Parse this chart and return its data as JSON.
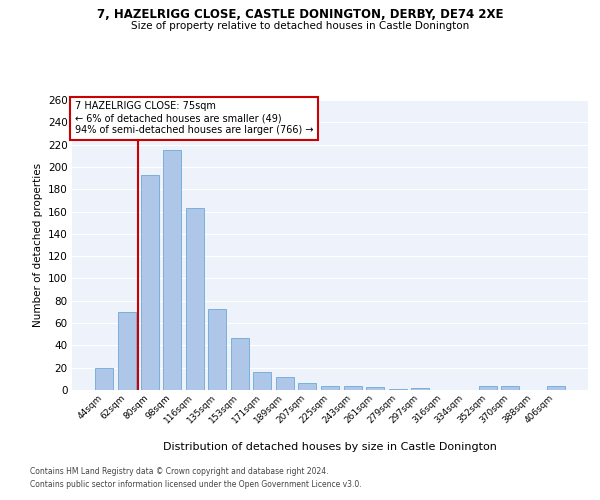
{
  "title1": "7, HAZELRIGG CLOSE, CASTLE DONINGTON, DERBY, DE74 2XE",
  "title2": "Size of property relative to detached houses in Castle Donington",
  "xlabel": "Distribution of detached houses by size in Castle Donington",
  "ylabel": "Number of detached properties",
  "categories": [
    "44sqm",
    "62sqm",
    "80sqm",
    "98sqm",
    "116sqm",
    "135sqm",
    "153sqm",
    "171sqm",
    "189sqm",
    "207sqm",
    "225sqm",
    "243sqm",
    "261sqm",
    "279sqm",
    "297sqm",
    "316sqm",
    "334sqm",
    "352sqm",
    "370sqm",
    "388sqm",
    "406sqm"
  ],
  "values": [
    20,
    70,
    193,
    215,
    163,
    73,
    47,
    16,
    12,
    6,
    4,
    4,
    3,
    1,
    2,
    0,
    0,
    4,
    4,
    0,
    4
  ],
  "bar_color": "#aec6e8",
  "bar_edge_color": "#5a9fd4",
  "bar_width": 0.8,
  "vline_x_index": 2,
  "vline_color": "#cc0000",
  "annotation_text": "7 HAZELRIGG CLOSE: 75sqm\n← 6% of detached houses are smaller (49)\n94% of semi-detached houses are larger (766) →",
  "annotation_box_color": "#ffffff",
  "annotation_box_edge": "#cc0000",
  "ylim": [
    0,
    260
  ],
  "yticks": [
    0,
    20,
    40,
    60,
    80,
    100,
    120,
    140,
    160,
    180,
    200,
    220,
    240,
    260
  ],
  "bg_color": "#eef2fb",
  "grid_color": "#ffffff",
  "footer1": "Contains HM Land Registry data © Crown copyright and database right 2024.",
  "footer2": "Contains public sector information licensed under the Open Government Licence v3.0."
}
